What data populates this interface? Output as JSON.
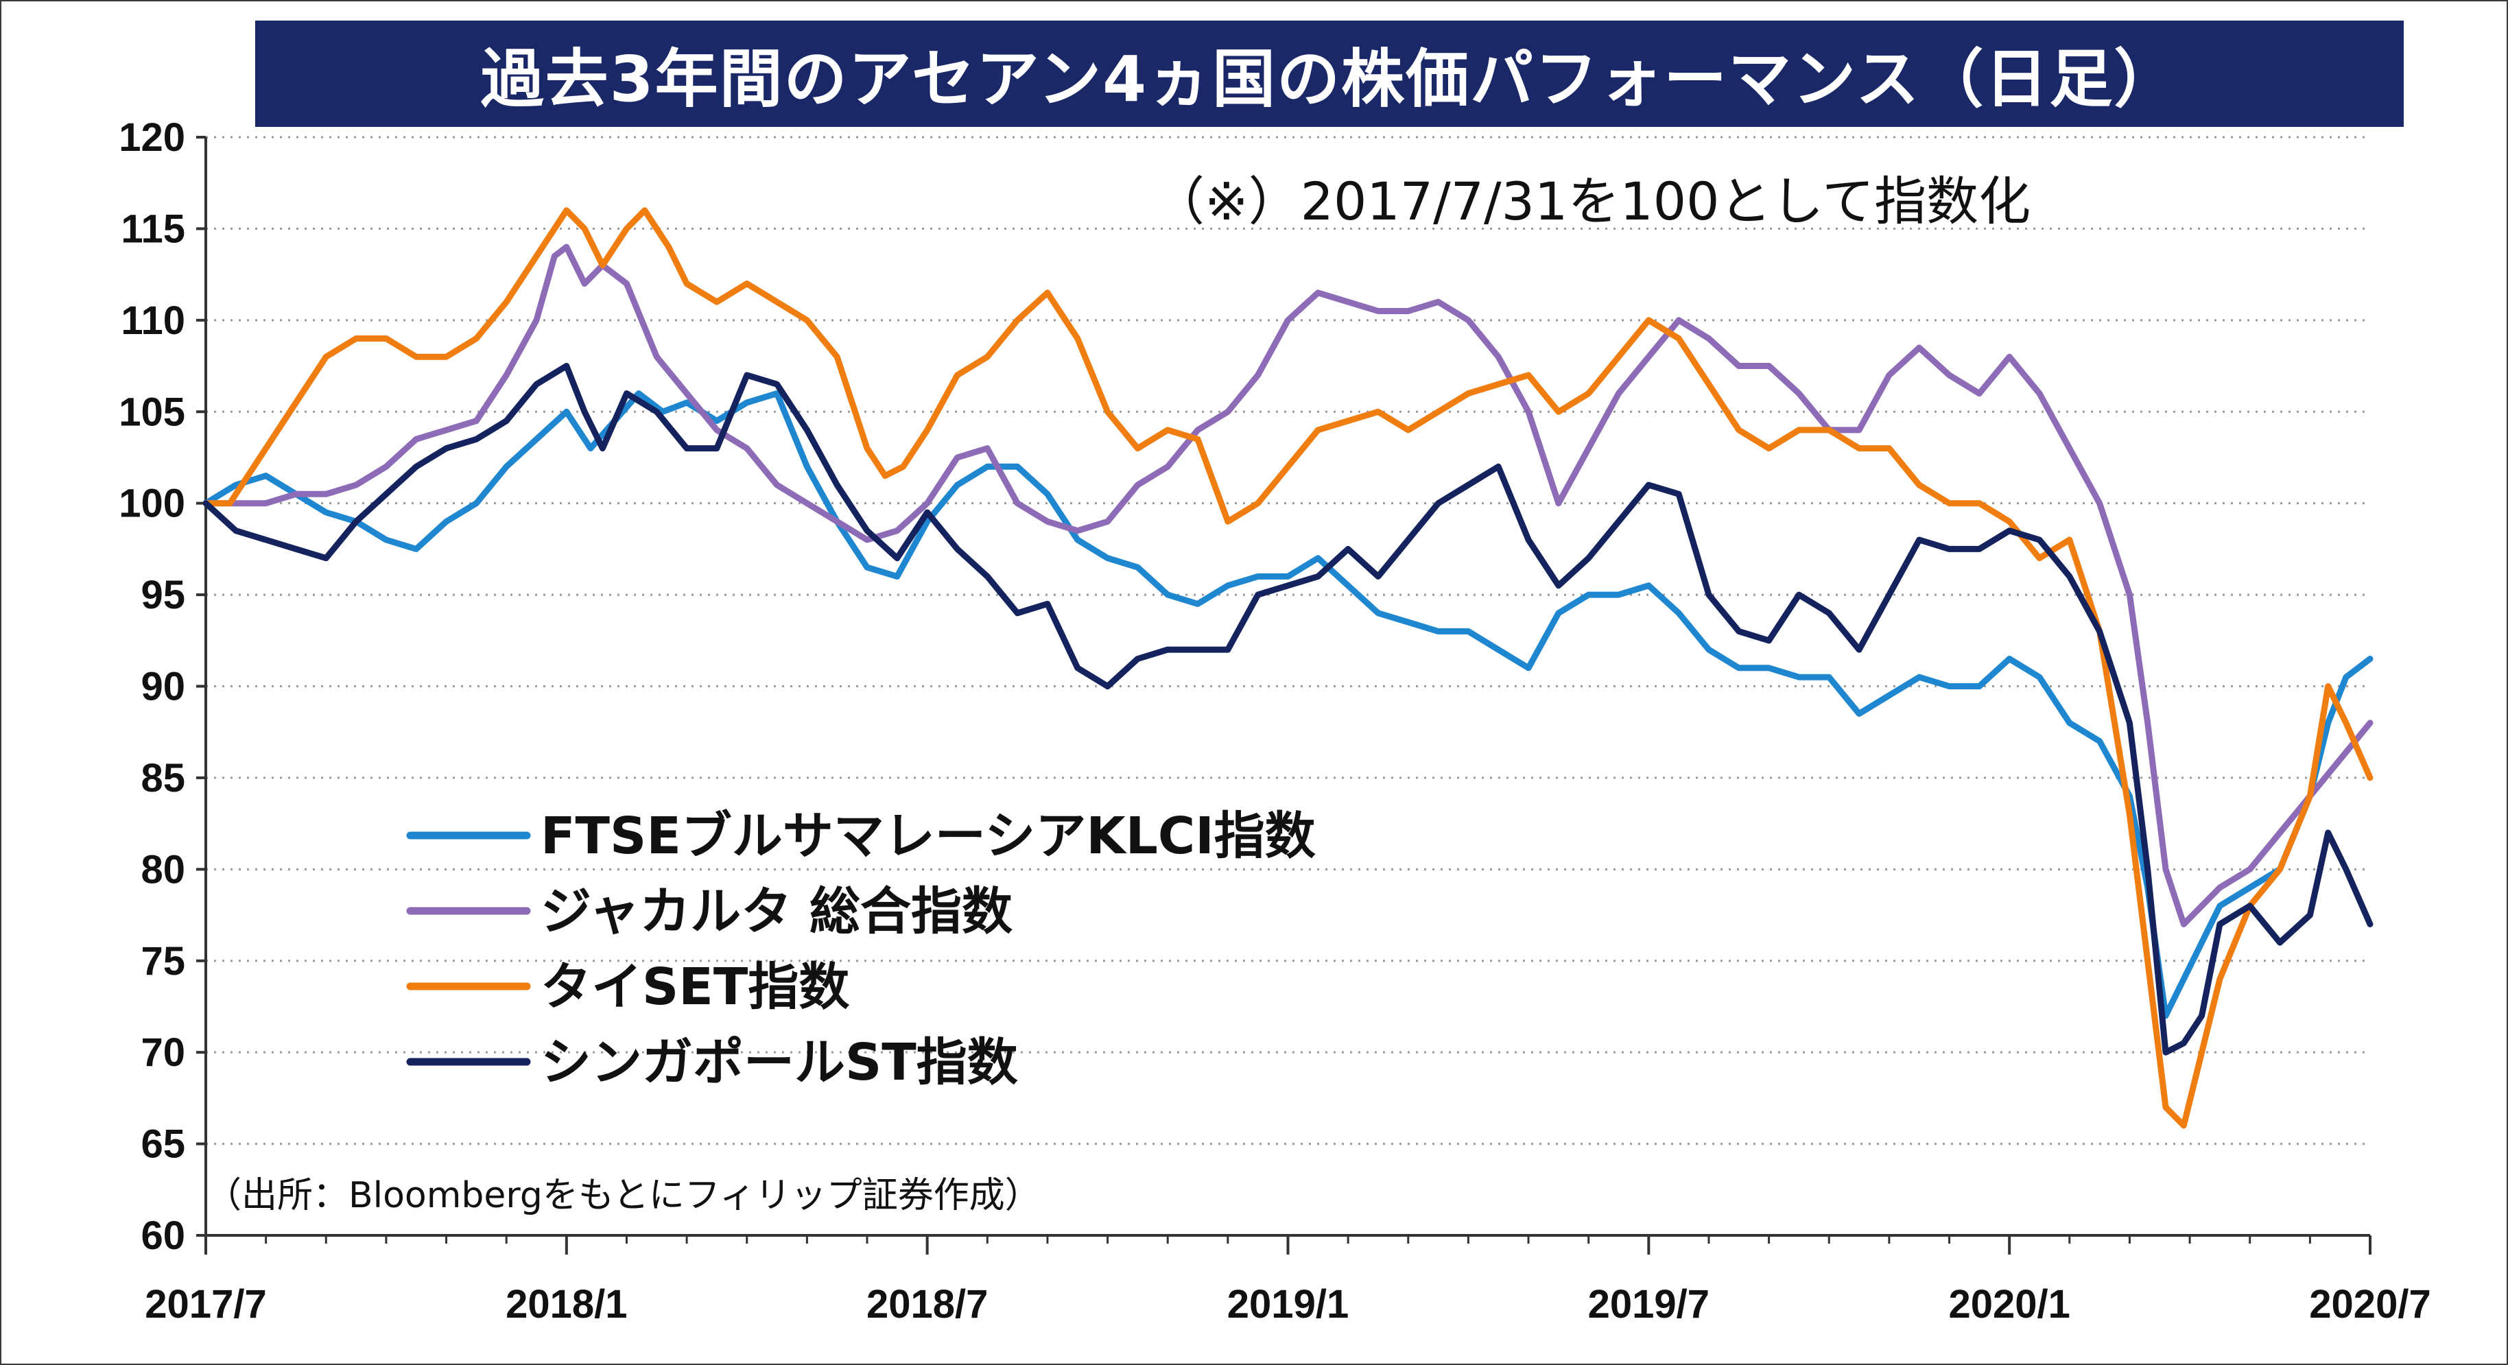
{
  "chart_data": {
    "type": "line",
    "title": "過去3年間のアセアン4ヵ国の株価パフォーマンス（日足）",
    "annotation": "（※）2017/7/31を100として指数化",
    "source": "（出所：Bloombergをもとにフィリップ証券作成）",
    "ylim": [
      60,
      120
    ],
    "yticks": [
      120,
      115,
      110,
      105,
      100,
      95,
      90,
      85,
      80,
      75,
      70,
      65,
      60
    ],
    "xlim": [
      0,
      36
    ],
    "xticks": [
      {
        "x": 0,
        "label": "2017/7"
      },
      {
        "x": 6,
        "label": "2018/1"
      },
      {
        "x": 12,
        "label": "2018/7"
      },
      {
        "x": 18,
        "label": "2019/1"
      },
      {
        "x": 24,
        "label": "2019/7"
      },
      {
        "x": 30,
        "label": "2020/1"
      },
      {
        "x": 36,
        "label": "2020/7"
      }
    ],
    "grid": "horizontal-dotted",
    "legend_position": "lower-left",
    "series": [
      {
        "name": "FTSEブルサマレーシアKLCI指数",
        "color": "#1f87d0",
        "points": [
          [
            0,
            100
          ],
          [
            0.5,
            101
          ],
          [
            1,
            101.5
          ],
          [
            1.5,
            100.5
          ],
          [
            2,
            99.5
          ],
          [
            2.5,
            99
          ],
          [
            3,
            98
          ],
          [
            3.5,
            97.5
          ],
          [
            4,
            99
          ],
          [
            4.5,
            100
          ],
          [
            5,
            102
          ],
          [
            5.5,
            103.5
          ],
          [
            6,
            105
          ],
          [
            6.4,
            103
          ],
          [
            6.8,
            104.5
          ],
          [
            7.2,
            106
          ],
          [
            7.6,
            105
          ],
          [
            8,
            105.5
          ],
          [
            8.5,
            104.5
          ],
          [
            9,
            105.5
          ],
          [
            9.5,
            106
          ],
          [
            10,
            102
          ],
          [
            10.5,
            99
          ],
          [
            11,
            96.5
          ],
          [
            11.5,
            96
          ],
          [
            12,
            99
          ],
          [
            12.5,
            101
          ],
          [
            13,
            102
          ],
          [
            13.5,
            102
          ],
          [
            14,
            100.5
          ],
          [
            14.5,
            98
          ],
          [
            15,
            97
          ],
          [
            15.5,
            96.5
          ],
          [
            16,
            95
          ],
          [
            16.5,
            94.5
          ],
          [
            17,
            95.5
          ],
          [
            17.5,
            96
          ],
          [
            18,
            96
          ],
          [
            18.5,
            97
          ],
          [
            19,
            95.5
          ],
          [
            19.5,
            94
          ],
          [
            20,
            93.5
          ],
          [
            20.5,
            93
          ],
          [
            21,
            93
          ],
          [
            21.5,
            92
          ],
          [
            22,
            91
          ],
          [
            22.5,
            94
          ],
          [
            23,
            95
          ],
          [
            23.5,
            95
          ],
          [
            24,
            95.5
          ],
          [
            24.5,
            94
          ],
          [
            25,
            92
          ],
          [
            25.5,
            91
          ],
          [
            26,
            91
          ],
          [
            26.5,
            90.5
          ],
          [
            27,
            90.5
          ],
          [
            27.5,
            88.5
          ],
          [
            28,
            89.5
          ],
          [
            28.5,
            90.5
          ],
          [
            29,
            90
          ],
          [
            29.5,
            90
          ],
          [
            30,
            91.5
          ],
          [
            30.5,
            90.5
          ],
          [
            31,
            88
          ],
          [
            31.5,
            87
          ],
          [
            32,
            84
          ],
          [
            32.3,
            79
          ],
          [
            32.6,
            72
          ],
          [
            32.9,
            74
          ],
          [
            33.2,
            76
          ],
          [
            33.5,
            78
          ],
          [
            34,
            79
          ],
          [
            34.5,
            80
          ],
          [
            35,
            84
          ],
          [
            35.3,
            88
          ],
          [
            35.6,
            90.5
          ],
          [
            36,
            91.5
          ]
        ]
      },
      {
        "name": "ジャカルタ 総合指数",
        "color": "#8e6bb6",
        "points": [
          [
            0,
            100
          ],
          [
            0.5,
            100
          ],
          [
            1,
            100
          ],
          [
            1.5,
            100.5
          ],
          [
            2,
            100.5
          ],
          [
            2.5,
            101
          ],
          [
            3,
            102
          ],
          [
            3.5,
            103.5
          ],
          [
            4,
            104
          ],
          [
            4.5,
            104.5
          ],
          [
            5,
            107
          ],
          [
            5.5,
            110
          ],
          [
            5.8,
            113.5
          ],
          [
            6,
            114
          ],
          [
            6.3,
            112
          ],
          [
            6.6,
            113
          ],
          [
            7,
            112
          ],
          [
            7.5,
            108
          ],
          [
            8,
            106
          ],
          [
            8.5,
            104
          ],
          [
            9,
            103
          ],
          [
            9.5,
            101
          ],
          [
            10,
            100
          ],
          [
            10.5,
            99
          ],
          [
            11,
            98
          ],
          [
            11.5,
            98.5
          ],
          [
            12,
            100
          ],
          [
            12.5,
            102.5
          ],
          [
            13,
            103
          ],
          [
            13.5,
            100
          ],
          [
            14,
            99
          ],
          [
            14.5,
            98.5
          ],
          [
            15,
            99
          ],
          [
            15.5,
            101
          ],
          [
            16,
            102
          ],
          [
            16.5,
            104
          ],
          [
            17,
            105
          ],
          [
            17.5,
            107
          ],
          [
            18,
            110
          ],
          [
            18.5,
            111.5
          ],
          [
            19,
            111
          ],
          [
            19.5,
            110.5
          ],
          [
            20,
            110.5
          ],
          [
            20.5,
            111
          ],
          [
            21,
            110
          ],
          [
            21.5,
            108
          ],
          [
            22,
            105
          ],
          [
            22.5,
            100
          ],
          [
            23,
            103
          ],
          [
            23.5,
            106
          ],
          [
            24,
            108
          ],
          [
            24.5,
            110
          ],
          [
            25,
            109
          ],
          [
            25.5,
            107.5
          ],
          [
            26,
            107.5
          ],
          [
            26.5,
            106
          ],
          [
            27,
            104
          ],
          [
            27.5,
            104
          ],
          [
            28,
            107
          ],
          [
            28.5,
            108.5
          ],
          [
            29,
            107
          ],
          [
            29.5,
            106
          ],
          [
            30,
            108
          ],
          [
            30.5,
            106
          ],
          [
            31,
            103
          ],
          [
            31.5,
            100
          ],
          [
            32,
            95
          ],
          [
            32.3,
            88
          ],
          [
            32.6,
            80
          ],
          [
            32.9,
            77
          ],
          [
            33.2,
            78
          ],
          [
            33.5,
            79
          ],
          [
            34,
            80
          ],
          [
            34.5,
            82
          ],
          [
            35,
            84
          ],
          [
            35.5,
            86
          ],
          [
            36,
            88
          ]
        ]
      },
      {
        "name": "タイSET指数",
        "color": "#f07d10",
        "points": [
          [
            0,
            100
          ],
          [
            0.4,
            100
          ],
          [
            0.8,
            102
          ],
          [
            1.2,
            104
          ],
          [
            1.6,
            106
          ],
          [
            2,
            108
          ],
          [
            2.5,
            109
          ],
          [
            3,
            109
          ],
          [
            3.5,
            108
          ],
          [
            4,
            108
          ],
          [
            4.5,
            109
          ],
          [
            5,
            111
          ],
          [
            5.4,
            113
          ],
          [
            5.8,
            115
          ],
          [
            6,
            116
          ],
          [
            6.3,
            115
          ],
          [
            6.6,
            113
          ],
          [
            7,
            115
          ],
          [
            7.3,
            116
          ],
          [
            7.7,
            114
          ],
          [
            8,
            112
          ],
          [
            8.5,
            111
          ],
          [
            9,
            112
          ],
          [
            9.5,
            111
          ],
          [
            10,
            110
          ],
          [
            10.5,
            108
          ],
          [
            11,
            103
          ],
          [
            11.3,
            101.5
          ],
          [
            11.6,
            102
          ],
          [
            12,
            104
          ],
          [
            12.5,
            107
          ],
          [
            13,
            108
          ],
          [
            13.5,
            110
          ],
          [
            14,
            111.5
          ],
          [
            14.5,
            109
          ],
          [
            15,
            105
          ],
          [
            15.5,
            103
          ],
          [
            16,
            104
          ],
          [
            16.5,
            103.5
          ],
          [
            17,
            99
          ],
          [
            17.5,
            100
          ],
          [
            18,
            102
          ],
          [
            18.5,
            104
          ],
          [
            19,
            104.5
          ],
          [
            19.5,
            105
          ],
          [
            20,
            104
          ],
          [
            20.5,
            105
          ],
          [
            21,
            106
          ],
          [
            21.5,
            106.5
          ],
          [
            22,
            107
          ],
          [
            22.5,
            105
          ],
          [
            23,
            106
          ],
          [
            23.5,
            108
          ],
          [
            24,
            110
          ],
          [
            24.5,
            109
          ],
          [
            25,
            106.5
          ],
          [
            25.5,
            104
          ],
          [
            26,
            103
          ],
          [
            26.5,
            104
          ],
          [
            27,
            104
          ],
          [
            27.5,
            103
          ],
          [
            28,
            103
          ],
          [
            28.5,
            101
          ],
          [
            29,
            100
          ],
          [
            29.5,
            100
          ],
          [
            30,
            99
          ],
          [
            30.5,
            97
          ],
          [
            31,
            98
          ],
          [
            31.5,
            93
          ],
          [
            32,
            83
          ],
          [
            32.3,
            75
          ],
          [
            32.6,
            67
          ],
          [
            32.9,
            66
          ],
          [
            33.2,
            70
          ],
          [
            33.5,
            74
          ],
          [
            34,
            78
          ],
          [
            34.5,
            80
          ],
          [
            35,
            84
          ],
          [
            35.3,
            90
          ],
          [
            35.6,
            88
          ],
          [
            36,
            85
          ]
        ]
      },
      {
        "name": "シンガポールST指数",
        "color": "#14225e",
        "points": [
          [
            0,
            100
          ],
          [
            0.5,
            98.5
          ],
          [
            1,
            98
          ],
          [
            1.5,
            97.5
          ],
          [
            2,
            97
          ],
          [
            2.5,
            99
          ],
          [
            3,
            100.5
          ],
          [
            3.5,
            102
          ],
          [
            4,
            103
          ],
          [
            4.5,
            103.5
          ],
          [
            5,
            104.5
          ],
          [
            5.5,
            106.5
          ],
          [
            6,
            107.5
          ],
          [
            6.3,
            105
          ],
          [
            6.6,
            103
          ],
          [
            7,
            106
          ],
          [
            7.5,
            105
          ],
          [
            8,
            103
          ],
          [
            8.5,
            103
          ],
          [
            9,
            107
          ],
          [
            9.5,
            106.5
          ],
          [
            10,
            104
          ],
          [
            10.5,
            101
          ],
          [
            11,
            98.5
          ],
          [
            11.5,
            97
          ],
          [
            12,
            99.5
          ],
          [
            12.5,
            97.5
          ],
          [
            13,
            96
          ],
          [
            13.5,
            94
          ],
          [
            14,
            94.5
          ],
          [
            14.5,
            91
          ],
          [
            15,
            90
          ],
          [
            15.5,
            91.5
          ],
          [
            16,
            92
          ],
          [
            16.5,
            92
          ],
          [
            17,
            92
          ],
          [
            17.5,
            95
          ],
          [
            18,
            95.5
          ],
          [
            18.5,
            96
          ],
          [
            19,
            97.5
          ],
          [
            19.5,
            96
          ],
          [
            20,
            98
          ],
          [
            20.5,
            100
          ],
          [
            21,
            101
          ],
          [
            21.5,
            102
          ],
          [
            22,
            98
          ],
          [
            22.5,
            95.5
          ],
          [
            23,
            97
          ],
          [
            23.5,
            99
          ],
          [
            24,
            101
          ],
          [
            24.5,
            100.5
          ],
          [
            25,
            95
          ],
          [
            25.5,
            93
          ],
          [
            26,
            92.5
          ],
          [
            26.5,
            95
          ],
          [
            27,
            94
          ],
          [
            27.5,
            92
          ],
          [
            28,
            95
          ],
          [
            28.5,
            98
          ],
          [
            29,
            97.5
          ],
          [
            29.5,
            97.5
          ],
          [
            30,
            98.5
          ],
          [
            30.5,
            98
          ],
          [
            31,
            96
          ],
          [
            31.5,
            93
          ],
          [
            32,
            88
          ],
          [
            32.3,
            80
          ],
          [
            32.6,
            70
          ],
          [
            32.9,
            70.5
          ],
          [
            33.2,
            72
          ],
          [
            33.5,
            77
          ],
          [
            34,
            78
          ],
          [
            34.5,
            76
          ],
          [
            35,
            77.5
          ],
          [
            35.3,
            82
          ],
          [
            35.6,
            80
          ],
          [
            36,
            77
          ]
        ]
      }
    ]
  }
}
